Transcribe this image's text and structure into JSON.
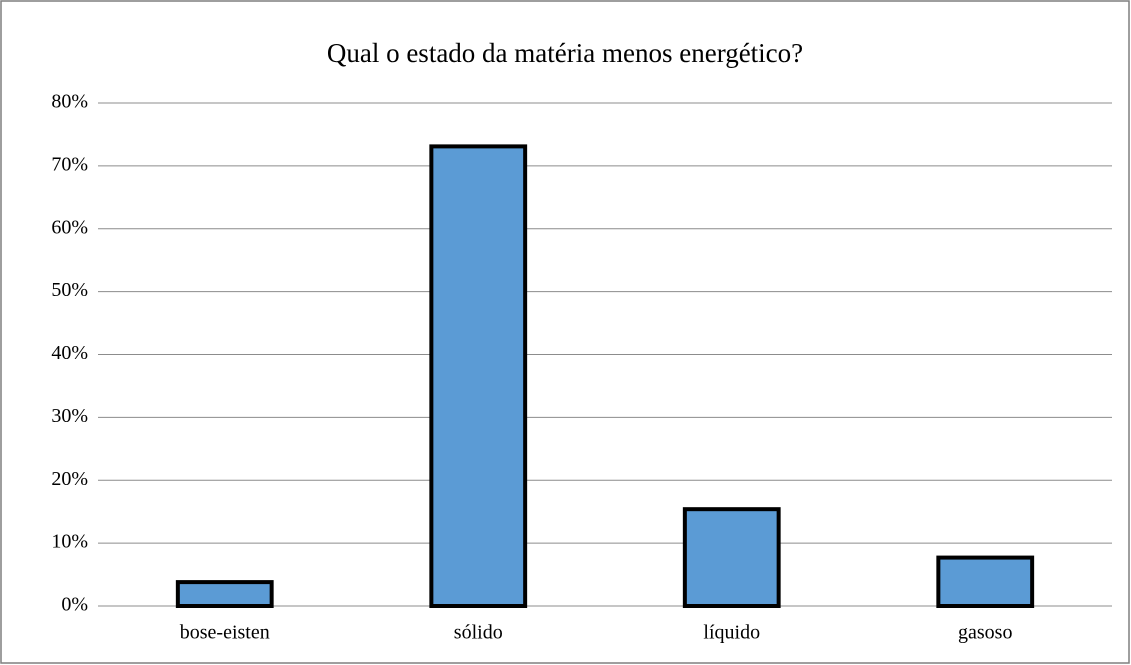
{
  "chart_data": {
    "type": "bar",
    "title": "Qual o estado da matéria menos energético?",
    "categories": [
      "bose-eisten",
      "sólido",
      "líquido",
      "gasoso"
    ],
    "values": [
      3.8,
      73.1,
      15.4,
      7.7
    ],
    "color": "#5b9bd5",
    "ylim": [
      0,
      80
    ],
    "yticks": [
      {
        "value": 0,
        "label": "0%"
      },
      {
        "value": 10,
        "label": "10%"
      },
      {
        "value": 20,
        "label": "20%"
      },
      {
        "value": 30,
        "label": "30%"
      },
      {
        "value": 40,
        "label": "40%"
      },
      {
        "value": 50,
        "label": "50%"
      },
      {
        "value": 60,
        "label": "60%"
      },
      {
        "value": 70,
        "label": "70%"
      },
      {
        "value": 80,
        "label": "80%"
      }
    ],
    "grid": true
  }
}
